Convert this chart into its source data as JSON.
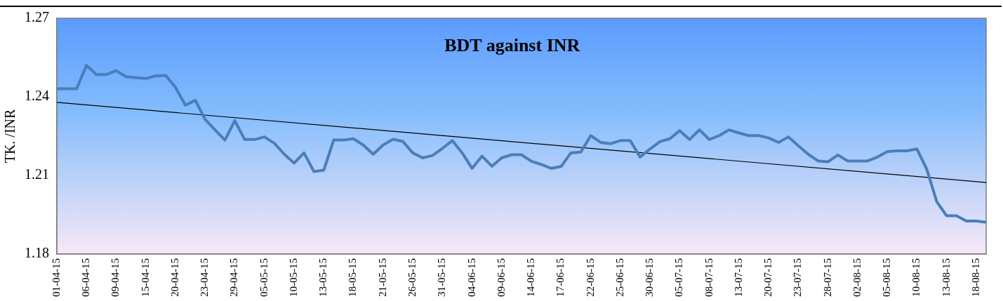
{
  "chart_data": {
    "type": "line",
    "title": "BDT against INR",
    "ylabel": "TK. /INR",
    "categories": [
      "01-04-15",
      null,
      null,
      "06-04-15",
      null,
      null,
      "09-04-15",
      null,
      null,
      "15-04-15",
      null,
      null,
      "20-04-15",
      null,
      null,
      "23-04-15",
      null,
      null,
      "29-04-15",
      null,
      null,
      "05-05-15",
      null,
      null,
      "10-05-15",
      null,
      null,
      "13-05-15",
      null,
      null,
      "18-05-15",
      null,
      null,
      "21-05-15",
      null,
      null,
      "26-05-15",
      null,
      null,
      "31-05-15",
      null,
      null,
      "04-06-15",
      null,
      null,
      "09-06-15",
      null,
      null,
      "14-06-15",
      null,
      null,
      "17-06-15",
      null,
      null,
      "22-06-15",
      null,
      null,
      "25-06-15",
      null,
      null,
      "30-06-15",
      null,
      null,
      "05-07-15",
      null,
      null,
      "08-07-15",
      null,
      null,
      "13-07-15",
      null,
      null,
      "20-07-15",
      null,
      null,
      "23-07-15",
      null,
      null,
      "28-07-15",
      null,
      null,
      "02-08-15",
      null,
      null,
      "05-08-15",
      null,
      null,
      "10-08-15",
      null,
      null,
      "13-08-15",
      null,
      null,
      "18-08-15",
      null
    ],
    "series": [
      {
        "color": "#4a7ebb",
        "values": [
          1.2431,
          1.2431,
          1.2431,
          1.252,
          1.2485,
          1.2485,
          1.25,
          1.2477,
          1.2473,
          1.247,
          1.248,
          1.2482,
          1.2436,
          1.2368,
          1.2387,
          1.2314,
          1.2274,
          1.2235,
          1.2309,
          1.2237,
          1.2237,
          1.2247,
          1.2223,
          1.2181,
          1.2147,
          1.2186,
          1.2115,
          1.212,
          1.2235,
          1.2235,
          1.224,
          1.2216,
          1.2181,
          1.2216,
          1.2238,
          1.223,
          1.2186,
          1.2167,
          1.2176,
          1.2203,
          1.2233,
          1.2186,
          1.2127,
          1.2174,
          1.2135,
          1.2167,
          1.2179,
          1.2179,
          1.2154,
          1.2142,
          1.2127,
          1.2134,
          1.2186,
          1.2189,
          1.2252,
          1.2226,
          1.2221,
          1.2233,
          1.2233,
          1.217,
          1.2201,
          1.2229,
          1.224,
          1.2271,
          1.2237,
          1.2274,
          1.2237,
          1.2252,
          1.2274,
          1.2262,
          1.2252,
          1.2252,
          1.2243,
          1.2226,
          1.2247,
          1.2213,
          1.2181,
          1.2155,
          1.2152,
          1.2178,
          1.2155,
          1.2155,
          1.2155,
          1.217,
          1.2191,
          1.2194,
          1.2194,
          1.2201,
          1.2123,
          1.2,
          1.1946,
          1.1946,
          1.1926,
          1.1926,
          1.1921
        ]
      },
      {
        "type": "line",
        "color": "#000000",
        "values": [
          1.2379,
          null,
          null,
          null,
          null,
          null,
          null,
          null,
          null,
          null,
          null,
          null,
          null,
          null,
          null,
          null,
          null,
          null,
          null,
          null,
          null,
          null,
          null,
          null,
          null,
          null,
          null,
          null,
          null,
          null,
          null,
          null,
          null,
          null,
          null,
          null,
          null,
          null,
          null,
          null,
          null,
          null,
          null,
          null,
          null,
          null,
          null,
          null,
          null,
          null,
          null,
          null,
          null,
          null,
          null,
          null,
          null,
          null,
          null,
          null,
          null,
          null,
          null,
          null,
          null,
          null,
          null,
          null,
          null,
          null,
          null,
          null,
          null,
          null,
          null,
          null,
          null,
          null,
          null,
          null,
          null,
          null,
          null,
          null,
          null,
          null,
          null,
          null,
          null,
          null,
          null,
          null,
          null,
          null,
          1.2073
        ]
      }
    ],
    "ylim": [
      1.18,
      1.27
    ],
    "yticks": [
      1.18,
      1.21,
      1.24,
      1.27
    ],
    "grid": false,
    "legend": false,
    "marker": "none",
    "line_style": "solid"
  }
}
